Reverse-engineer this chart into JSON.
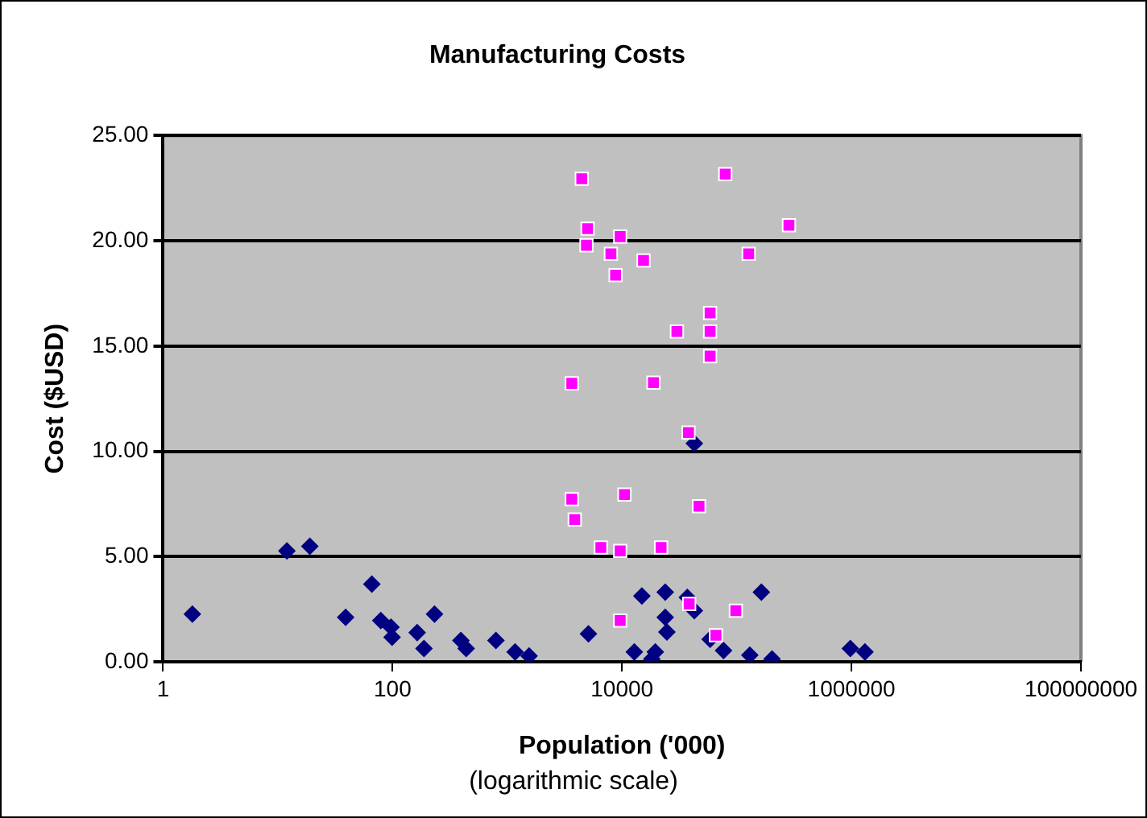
{
  "chart_data": {
    "type": "scatter",
    "title": "Manufacturing Costs",
    "xlabel": "Population ('000)",
    "ylabel": "Cost ($USD)",
    "annotations": [
      "(logarithmic scale)"
    ],
    "log": "x",
    "grid": "y",
    "xlim": [
      1,
      100000000
    ],
    "xticks": [
      1,
      100,
      10000,
      1000000,
      100000000
    ],
    "ylim": [
      0,
      25
    ],
    "yticks": [
      {
        "value": 0,
        "label": "0.00"
      },
      {
        "value": 5,
        "label": "5.00"
      },
      {
        "value": 10,
        "label": "10.00"
      },
      {
        "value": 15,
        "label": "15.00"
      },
      {
        "value": 20,
        "label": "20.00"
      },
      {
        "value": 25,
        "label": "25.00"
      }
    ],
    "series": [
      {
        "color": "#000080",
        "marker": "diamond",
        "x": [
          1.8,
          12,
          19,
          39,
          66,
          79,
          97,
          99,
          164,
          188,
          232,
          394,
          438,
          796,
          1170,
          1550,
          5100,
          12800,
          14900,
          18200,
          19500,
          23800,
          23800,
          24600,
          37100,
          42700,
          42700,
          58600,
          76700,
          130000,
          164000,
          203000,
          977000,
          1310000
        ],
        "values": [
          2.27,
          5.27,
          5.49,
          2.11,
          3.69,
          1.96,
          1.64,
          1.17,
          1.39,
          0.63,
          2.27,
          1.01,
          0.63,
          1.01,
          0.47,
          0.28,
          1.33,
          0.47,
          3.13,
          0.13,
          0.47,
          3.31,
          2.11,
          1.42,
          3.06,
          2.43,
          10.38,
          1.07,
          0.54,
          0.32,
          3.31,
          0.13,
          0.63,
          0.47
        ]
      },
      {
        "color": "#ff00ff",
        "marker": "square",
        "x": [
          4460,
          5010,
          4900,
          3650,
          3650,
          3870,
          6540,
          9640,
          9640,
          8000,
          8790,
          15400,
          9640,
          10500,
          18800,
          21900,
          30100,
          38000,
          46900,
          58600,
          58600,
          58600,
          38500,
          65900,
          79400,
          98200,
          127000,
          285000
        ],
        "values": [
          22.95,
          20.58,
          19.79,
          13.23,
          7.73,
          6.76,
          5.43,
          5.27,
          20.2,
          19.38,
          18.37,
          19.07,
          1.96,
          7.95,
          13.26,
          5.43,
          15.69,
          10.89,
          7.39,
          16.57,
          15.69,
          14.52,
          2.75,
          1.26,
          23.17,
          2.43,
          19.38,
          20.74
        ]
      }
    ]
  }
}
